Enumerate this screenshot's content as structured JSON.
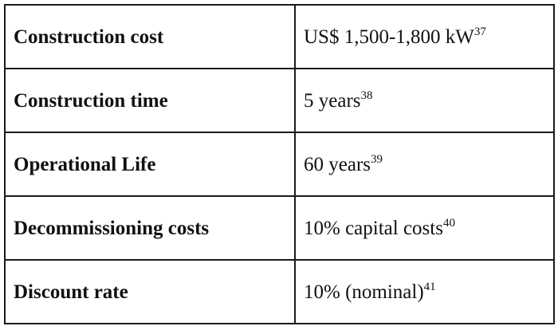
{
  "rows": [
    {
      "label": "Construction cost",
      "value": "US$ 1,500-1,800 kW",
      "note": "37"
    },
    {
      "label": "Construction time",
      "value": "5 years",
      "note": "38"
    },
    {
      "label": "Operational Life",
      "value": "60 years",
      "note": "39"
    },
    {
      "label": "Decommissioning costs",
      "value": "10% capital costs",
      "note": "40"
    },
    {
      "label": "Discount rate",
      "value": "10% (nominal)",
      "note": "41"
    }
  ]
}
